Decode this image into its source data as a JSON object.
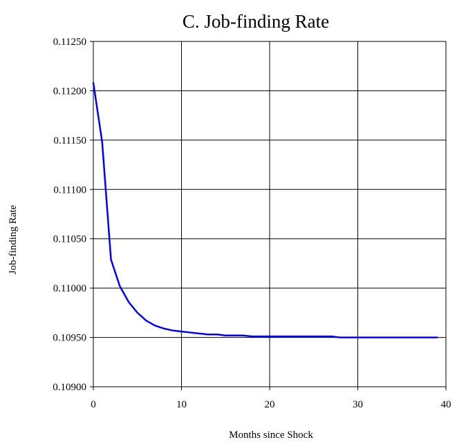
{
  "chart_data": {
    "type": "line",
    "title": "C.  Job-finding Rate",
    "xlabel": "Months since Shock",
    "ylabel": "Job-finding Rate",
    "xlim": [
      0,
      40
    ],
    "ylim": [
      0.109,
      0.1125
    ],
    "x_ticks": [
      "0",
      "10",
      "20",
      "30",
      "40"
    ],
    "y_ticks": [
      "0.10900",
      "0.10950",
      "0.11000",
      "0.11050",
      "0.11100",
      "0.11150",
      "0.11200",
      "0.11250"
    ],
    "grid": true,
    "legend": "none",
    "series": [
      {
        "color": "#0000ff",
        "x": [
          0,
          1,
          2,
          3,
          4,
          5,
          6,
          7,
          8,
          9,
          10,
          11,
          12,
          13,
          14,
          15,
          16,
          17,
          18,
          19,
          20,
          21,
          22,
          23,
          24,
          25,
          26,
          27,
          28,
          29,
          30,
          31,
          32,
          33,
          34,
          35,
          36,
          37,
          38,
          39
        ],
        "y": [
          0.11208,
          0.11148,
          0.11029,
          0.11002,
          0.10986,
          0.10975,
          0.10967,
          0.10962,
          0.10959,
          0.10957,
          0.10956,
          0.10955,
          0.10954,
          0.10953,
          0.10953,
          0.10952,
          0.10952,
          0.10952,
          0.10951,
          0.10951,
          0.10951,
          0.10951,
          0.10951,
          0.10951,
          0.10951,
          0.10951,
          0.10951,
          0.10951,
          0.1095,
          0.1095,
          0.1095,
          0.1095,
          0.1095,
          0.1095,
          0.1095,
          0.1095,
          0.1095,
          0.1095,
          0.1095,
          0.1095
        ]
      }
    ]
  }
}
